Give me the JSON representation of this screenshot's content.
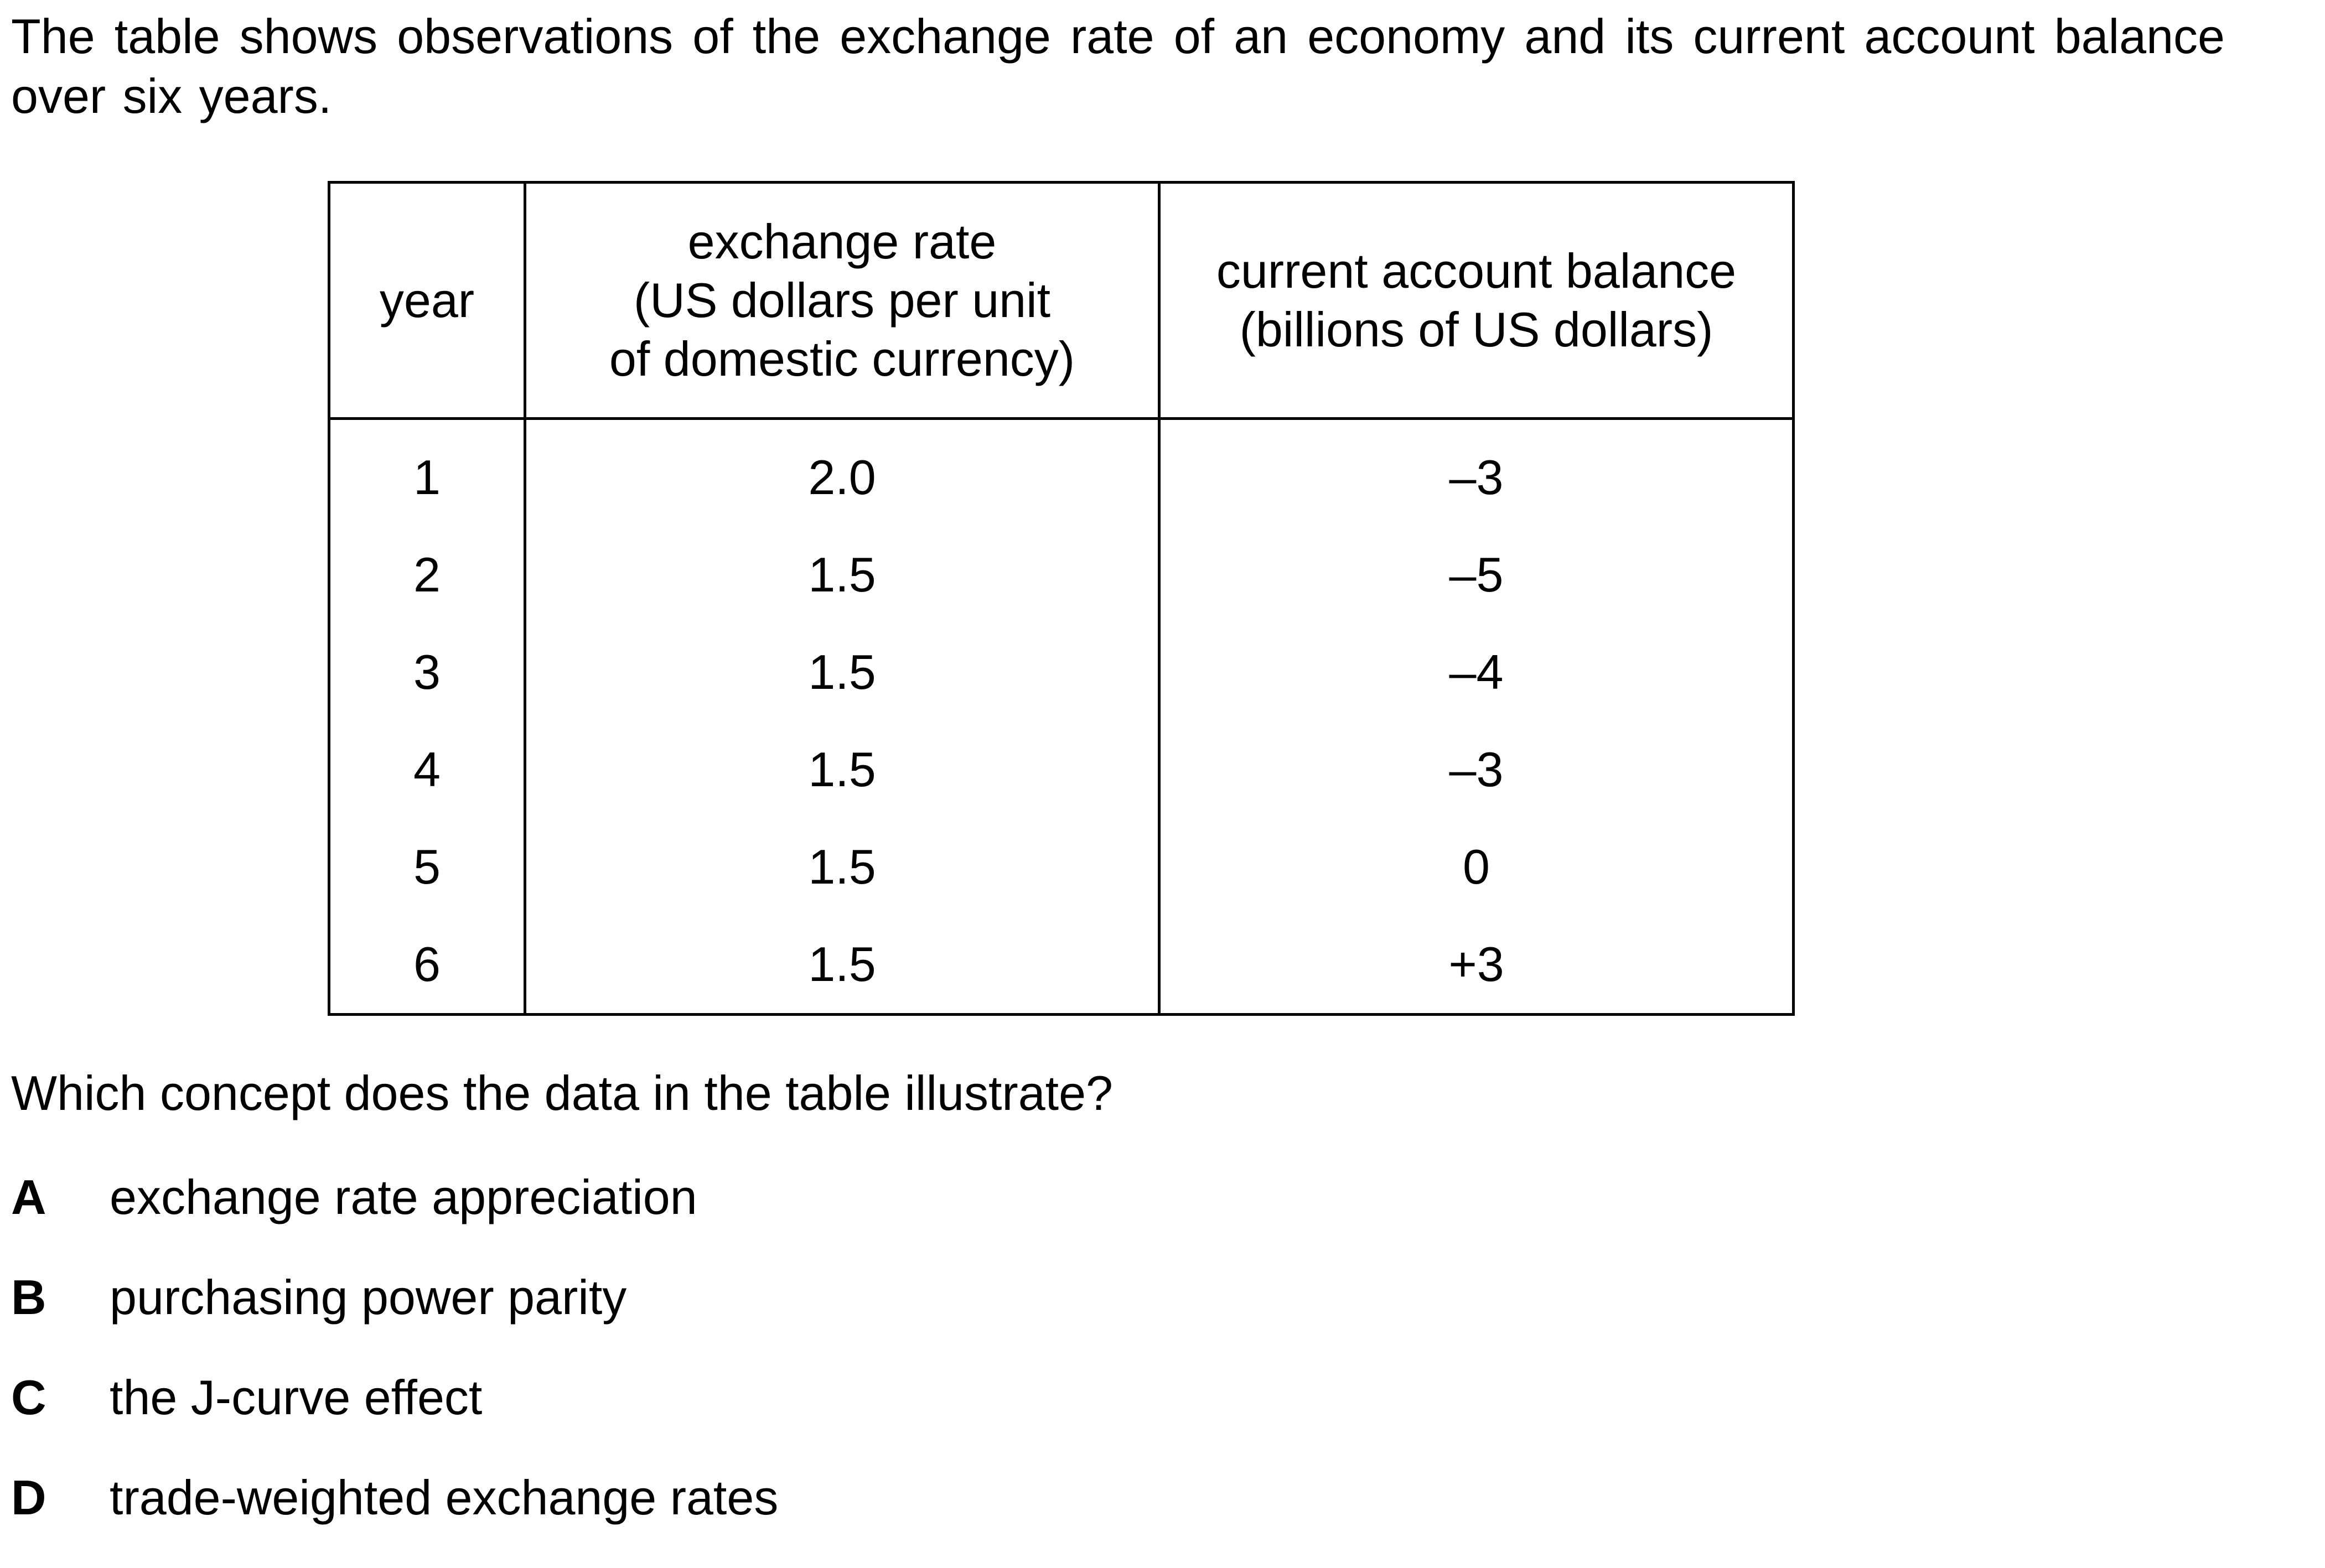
{
  "intro_text": "The table shows observations of the exchange rate of an economy and its current account balance over six years.",
  "table": {
    "headers": {
      "year": "year",
      "exchange_rate": [
        "exchange rate",
        "(US dollars per unit",
        "of domestic currency)"
      ],
      "current_account_balance": [
        "current account balance",
        "(billions of US dollars)"
      ]
    },
    "rows": [
      {
        "year": "1",
        "exchange_rate": "2.0",
        "current_account_balance": "–3"
      },
      {
        "year": "2",
        "exchange_rate": "1.5",
        "current_account_balance": "–5"
      },
      {
        "year": "3",
        "exchange_rate": "1.5",
        "current_account_balance": "–4"
      },
      {
        "year": "4",
        "exchange_rate": "1.5",
        "current_account_balance": "–3"
      },
      {
        "year": "5",
        "exchange_rate": "1.5",
        "current_account_balance": "0"
      },
      {
        "year": "6",
        "exchange_rate": "1.5",
        "current_account_balance": "+3"
      }
    ]
  },
  "question": "Which concept does the data in the table illustrate?",
  "options": [
    {
      "letter": "A",
      "text": "exchange rate appreciation"
    },
    {
      "letter": "B",
      "text": "purchasing power parity"
    },
    {
      "letter": "C",
      "text": "the J-curve effect"
    },
    {
      "letter": "D",
      "text": "trade-weighted exchange rates"
    }
  ]
}
